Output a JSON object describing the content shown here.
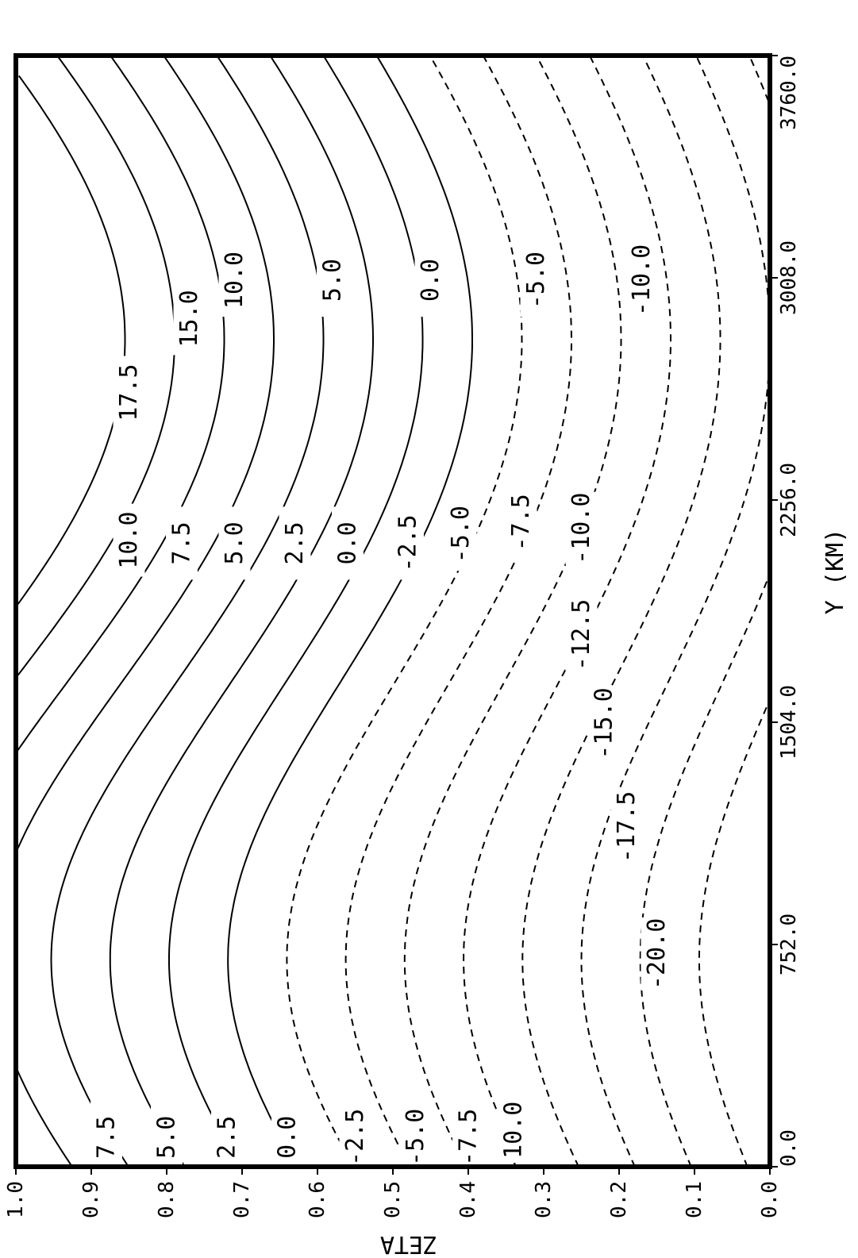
{
  "chart_data": {
    "type": "contour",
    "title": "",
    "xlabel": "Y (KM)",
    "ylabel": "ZETA",
    "x_ticks": [
      "0.0",
      "752.0",
      "1504.0",
      "2256.0",
      "3008.0",
      "3760.0"
    ],
    "y_ticks": [
      "0.0",
      "0.1",
      "0.2",
      "0.3",
      "0.4",
      "0.5",
      "0.6",
      "0.7",
      "0.8",
      "0.9",
      "1.0"
    ],
    "xlim": [
      0,
      3760
    ],
    "ylim": [
      0,
      1
    ],
    "contour_interval": 2.5,
    "negative_contours_dashed": true,
    "levels": [
      {
        "value": 17.5
      },
      {
        "value": 15.0
      },
      {
        "value": 12.5
      },
      {
        "value": 10.0
      },
      {
        "value": 7.5
      },
      {
        "value": 5.0
      },
      {
        "value": 2.5
      },
      {
        "value": 0.0
      },
      {
        "value": -2.5
      },
      {
        "value": -5.0
      },
      {
        "value": -7.5
      },
      {
        "value": -10.0
      },
      {
        "value": -12.5
      },
      {
        "value": -15.0
      },
      {
        "value": -17.5
      },
      {
        "value": -20.0
      }
    ],
    "labels": [
      {
        "text": "7.5",
        "x": 100,
        "z": 0.88
      },
      {
        "text": "5.0",
        "x": 100,
        "z": 0.8
      },
      {
        "text": "2.5",
        "x": 100,
        "z": 0.72
      },
      {
        "text": "0.0",
        "x": 100,
        "z": 0.64
      },
      {
        "text": "-2.5",
        "x": 100,
        "z": 0.55
      },
      {
        "text": "-5.0",
        "x": 100,
        "z": 0.47
      },
      {
        "text": "-7.5",
        "x": 100,
        "z": 0.4
      },
      {
        "text": "-10.0",
        "x": 100,
        "z": 0.34
      },
      {
        "text": "-20.0",
        "x": 720,
        "z": 0.15
      },
      {
        "text": "-17.5",
        "x": 1150,
        "z": 0.19
      },
      {
        "text": "-15.0",
        "x": 1500,
        "z": 0.22
      },
      {
        "text": "-12.5",
        "x": 1800,
        "z": 0.25
      },
      {
        "text": "-10.0",
        "x": 2160,
        "z": 0.25
      },
      {
        "text": "-7.5",
        "x": 2180,
        "z": 0.33
      },
      {
        "text": "-5.0",
        "x": 2140,
        "z": 0.41
      },
      {
        "text": "-2.5",
        "x": 2110,
        "z": 0.48
      },
      {
        "text": "0.0",
        "x": 2110,
        "z": 0.56
      },
      {
        "text": "2.5",
        "x": 2110,
        "z": 0.63
      },
      {
        "text": "5.0",
        "x": 2110,
        "z": 0.71
      },
      {
        "text": "7.5",
        "x": 2110,
        "z": 0.78
      },
      {
        "text": "10.0",
        "x": 2120,
        "z": 0.85
      },
      {
        "text": "17.5",
        "x": 2620,
        "z": 0.85
      },
      {
        "text": "15.0",
        "x": 2870,
        "z": 0.77
      },
      {
        "text": "10.0",
        "x": 3000,
        "z": 0.71
      },
      {
        "text": "5.0",
        "x": 3000,
        "z": 0.58
      },
      {
        "text": "0.0",
        "x": 3000,
        "z": 0.45
      },
      {
        "text": "-5.0",
        "x": 3000,
        "z": 0.31
      },
      {
        "text": "-10.0",
        "x": 3000,
        "z": 0.17
      }
    ]
  }
}
